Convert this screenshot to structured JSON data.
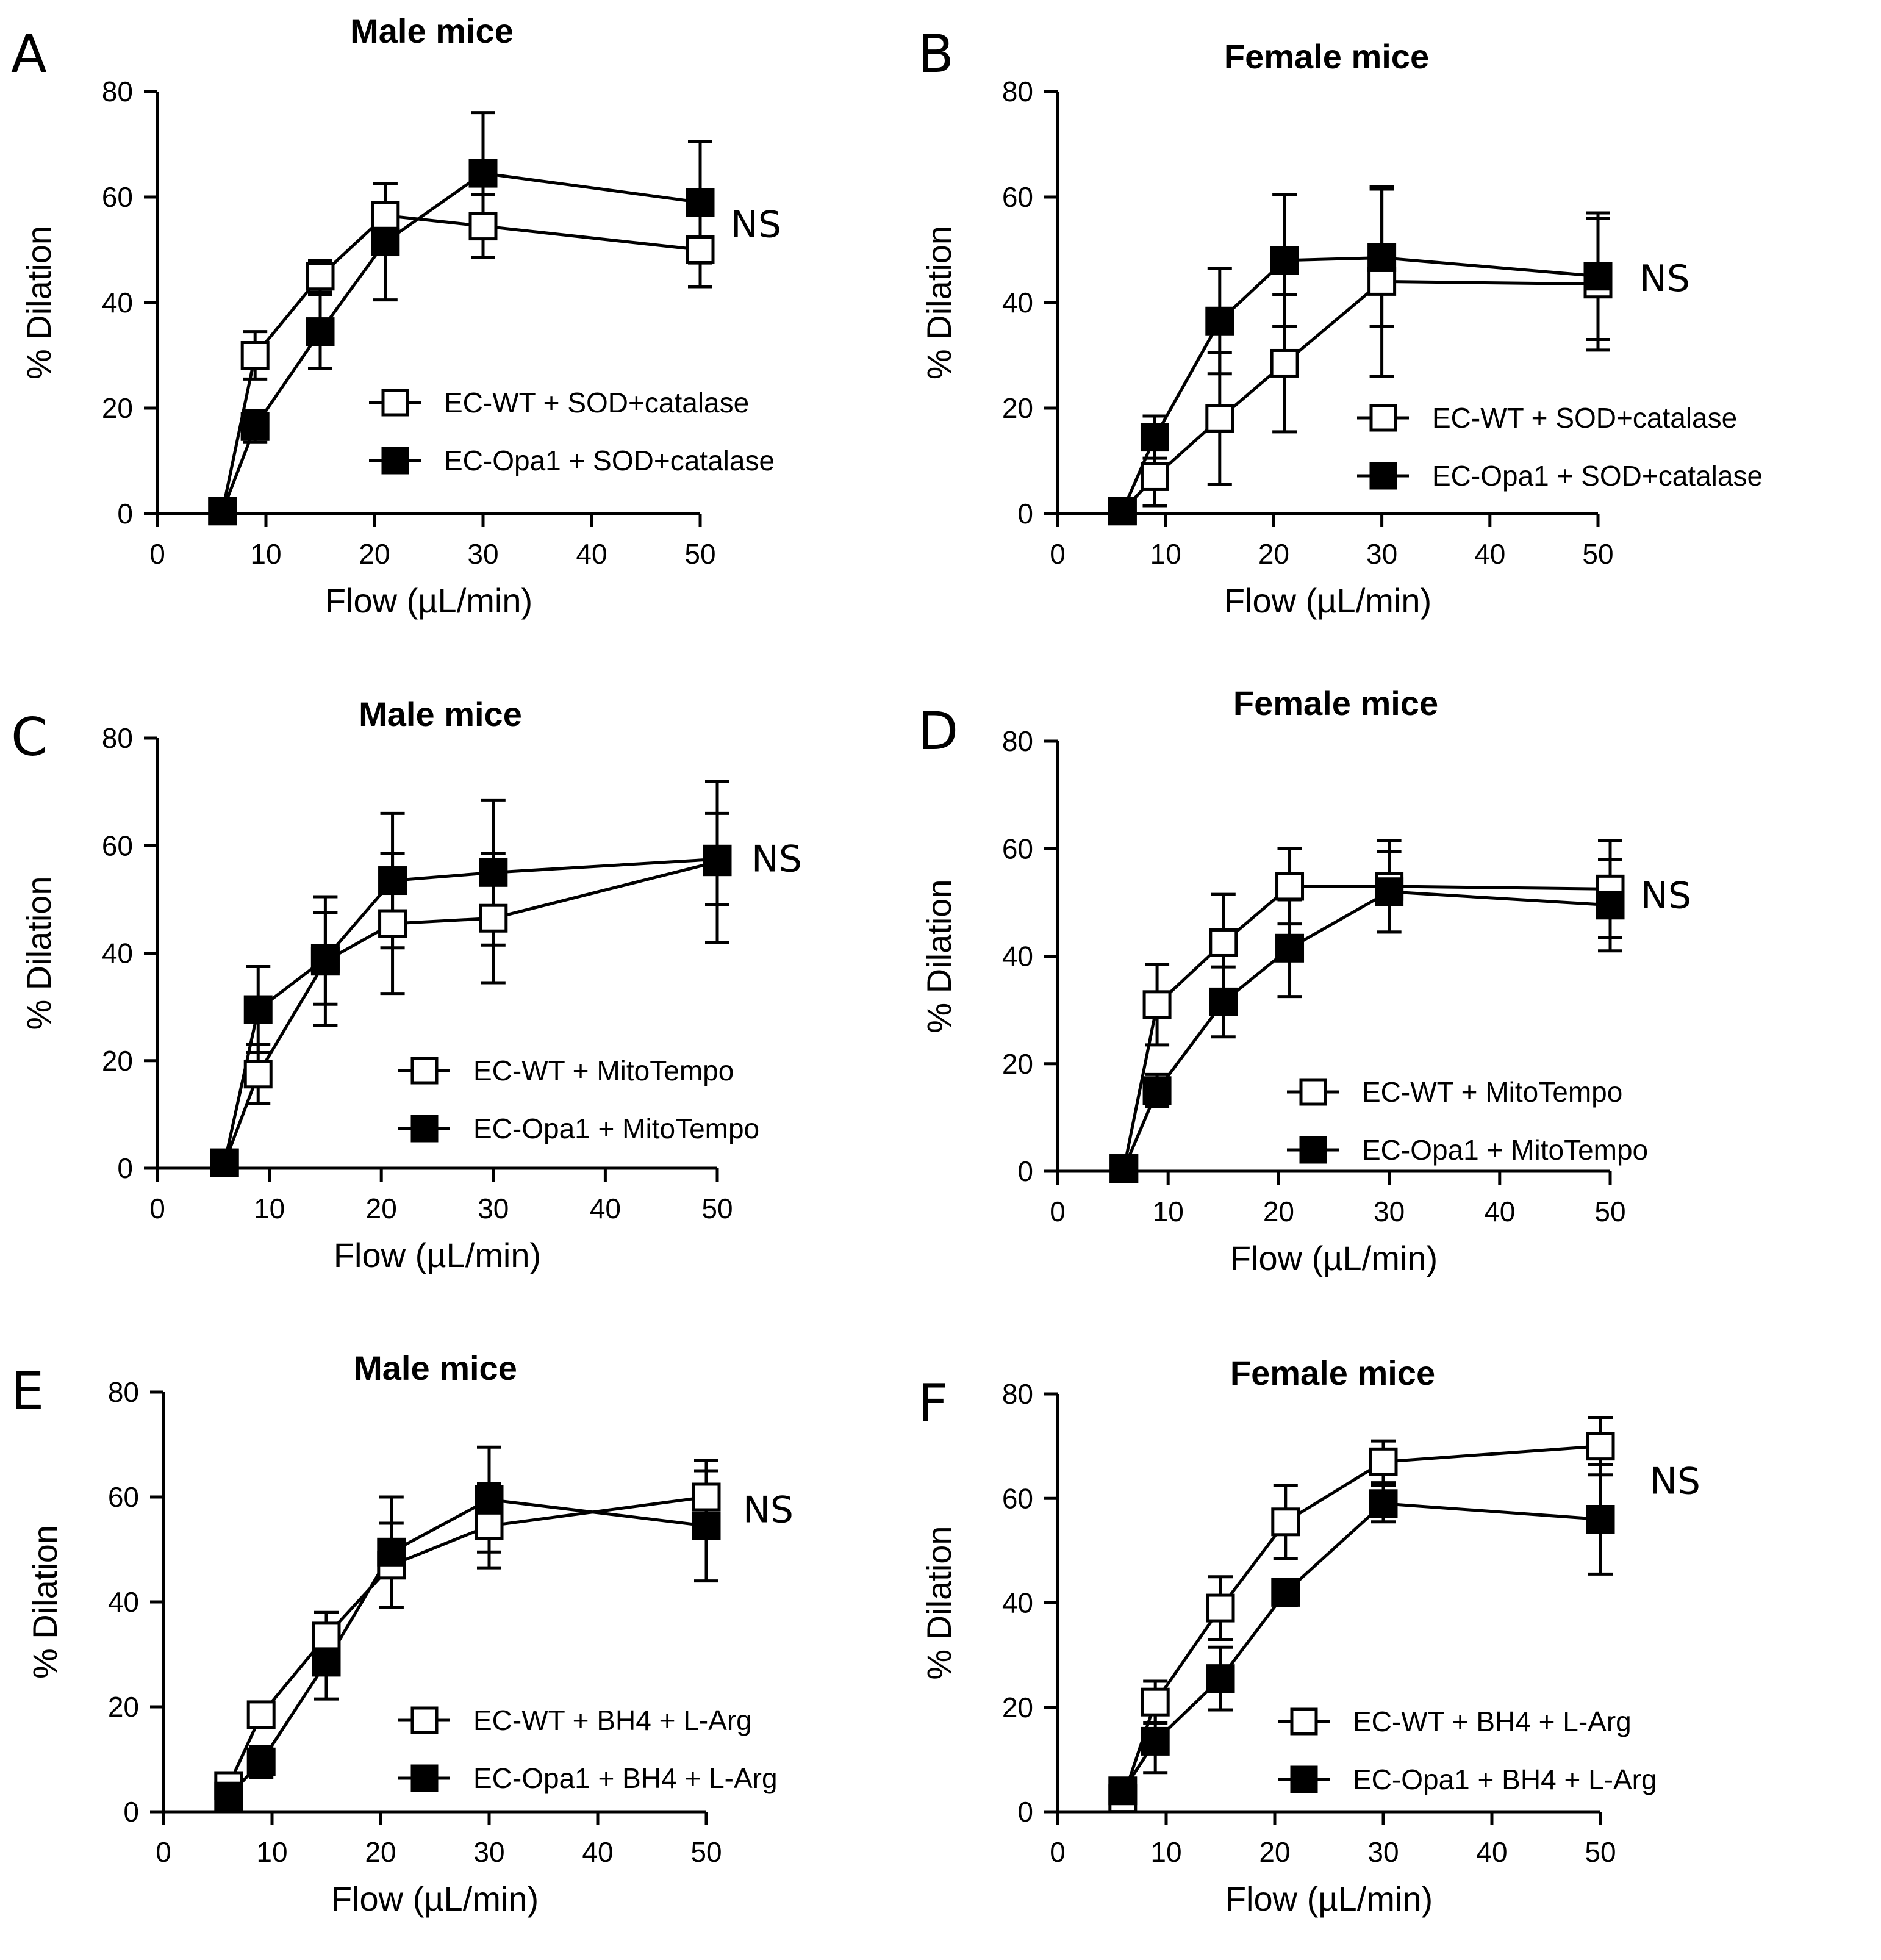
{
  "chart_data": [
    {
      "panel": "A",
      "title": "Male mice",
      "type": "line",
      "xlabel": "Flow (µL/min)",
      "ylabel": "% Dilation",
      "xlim": [
        0,
        50
      ],
      "ylim": [
        0,
        80
      ],
      "xticks": [
        0,
        10,
        20,
        30,
        40,
        50
      ],
      "yticks": [
        0,
        20,
        40,
        60,
        80
      ],
      "annotation": "NS",
      "x": [
        6,
        9,
        15,
        21,
        30,
        50
      ],
      "series": [
        {
          "name": "EC-WT + SOD+catalase",
          "marker": "open-square",
          "values": [
            0.5,
            30,
            45,
            56.5,
            54.5,
            50
          ],
          "err": [
            0,
            4.5,
            3,
            6,
            6,
            7
          ]
        },
        {
          "name": "EC-Opa1 + SOD+catalase",
          "marker": "filled-square",
          "values": [
            0.5,
            16.5,
            34.5,
            51.5,
            64.5,
            59
          ],
          "err": [
            0,
            3,
            7,
            11,
            11.5,
            11.5
          ]
        }
      ]
    },
    {
      "panel": "B",
      "title": "Female mice",
      "type": "line",
      "xlabel": "Flow (µL/min)",
      "ylabel": "% Dilation",
      "xlim": [
        0,
        50
      ],
      "ylim": [
        0,
        80
      ],
      "xticks": [
        0,
        10,
        20,
        30,
        40,
        50
      ],
      "yticks": [
        0,
        20,
        40,
        60,
        80
      ],
      "annotation": "NS",
      "x": [
        6,
        9,
        15,
        21,
        30,
        50
      ],
      "series": [
        {
          "name": "EC-WT + SOD+catalase",
          "marker": "open-square",
          "values": [
            0.5,
            7,
            18,
            28.5,
            44,
            43.5
          ],
          "err": [
            0,
            5.5,
            12.5,
            13,
            18,
            12.5
          ]
        },
        {
          "name": "EC-Opa1 + SOD+catalase",
          "marker": "filled-square",
          "values": [
            0.5,
            14.5,
            36.5,
            48,
            48.5,
            45
          ],
          "err": [
            0,
            4,
            10,
            12.5,
            13,
            12
          ]
        }
      ]
    },
    {
      "panel": "C",
      "title": "Male mice",
      "type": "line",
      "xlabel": "Flow (µL/min)",
      "ylabel": "% Dilation",
      "xlim": [
        0,
        50
      ],
      "ylim": [
        0,
        80
      ],
      "xticks": [
        0,
        10,
        20,
        30,
        40,
        50
      ],
      "yticks": [
        0,
        20,
        40,
        60,
        80
      ],
      "annotation": "NS",
      "x": [
        6,
        9,
        15,
        21,
        30,
        50
      ],
      "series": [
        {
          "name": "EC-WT + MitoTempo",
          "marker": "open-square",
          "values": [
            1,
            17.5,
            38.5,
            45.5,
            46.5,
            57
          ],
          "err": [
            0,
            5.5,
            12,
            13,
            12,
            15
          ]
        },
        {
          "name": "EC-Opa1 + MitoTempo",
          "marker": "filled-square",
          "values": [
            1,
            29.5,
            39,
            53.5,
            55,
            57.5
          ],
          "err": [
            0,
            8,
            8.5,
            12.5,
            13.5,
            8.5
          ]
        }
      ]
    },
    {
      "panel": "D",
      "title": "Female mice",
      "type": "line",
      "xlabel": "Flow (µL/min)",
      "ylabel": "% Dilation",
      "xlim": [
        0,
        50
      ],
      "ylim": [
        0,
        80
      ],
      "xticks": [
        0,
        10,
        20,
        30,
        40,
        50
      ],
      "yticks": [
        0,
        20,
        40,
        60,
        80
      ],
      "annotation": "NS",
      "x": [
        6,
        9,
        15,
        21,
        30,
        50
      ],
      "series": [
        {
          "name": "EC-WT + MitoTempo",
          "marker": "open-square",
          "values": [
            0.5,
            31,
            42.5,
            53,
            53,
            52.5
          ],
          "err": [
            0,
            7.5,
            9,
            7,
            8.5,
            9
          ]
        },
        {
          "name": "EC-Opa1 + MitoTempo",
          "marker": "filled-square",
          "values": [
            0.5,
            15,
            31.5,
            41.5,
            52,
            49.5
          ],
          "err": [
            0,
            3,
            6.5,
            9,
            7.5,
            8.5
          ]
        }
      ]
    },
    {
      "panel": "E",
      "title": "Male mice",
      "type": "line",
      "xlabel": "Flow (µL/min)",
      "ylabel": "% Dilation",
      "xlim": [
        0,
        50
      ],
      "ylim": [
        0,
        80
      ],
      "xticks": [
        0,
        10,
        20,
        30,
        40,
        50
      ],
      "yticks": [
        0,
        20,
        40,
        60,
        80
      ],
      "annotation": "NS",
      "x": [
        6,
        9,
        15,
        21,
        30,
        50
      ],
      "series": [
        {
          "name": "EC-WT + BH4 + L-Arg",
          "marker": "open-square",
          "values": [
            5,
            18.5,
            33.5,
            47,
            54.5,
            60
          ],
          "err": [
            0,
            0,
            4.5,
            8,
            8,
            7
          ]
        },
        {
          "name": "EC-Opa1 + BH4 + L-Arg",
          "marker": "filled-square",
          "values": [
            3,
            9.5,
            28.5,
            49.5,
            59.5,
            54.5
          ],
          "err": [
            0,
            3,
            7,
            10.5,
            10,
            10.5
          ]
        }
      ]
    },
    {
      "panel": "F",
      "title": "Female mice",
      "type": "line",
      "xlabel": "Flow (µL/min)",
      "ylabel": "% Dilation",
      "xlim": [
        0,
        50
      ],
      "ylim": [
        0,
        80
      ],
      "xticks": [
        0,
        10,
        20,
        30,
        40,
        50
      ],
      "yticks": [
        0,
        20,
        40,
        60,
        80
      ],
      "annotation": "NS",
      "x": [
        6,
        9,
        15,
        21,
        30,
        50
      ],
      "series": [
        {
          "name": "EC-WT + BH4 + L-Arg",
          "marker": "open-square",
          "values": [
            2.5,
            21,
            39,
            55.5,
            67,
            70
          ],
          "err": [
            0,
            4,
            6,
            7,
            4,
            5.5
          ]
        },
        {
          "name": "EC-Opa1 + BH4 + L-Arg",
          "marker": "filled-square",
          "values": [
            4,
            13.5,
            25.5,
            42,
            59,
            56
          ],
          "err": [
            2,
            6,
            6,
            2.5,
            3.5,
            10.5
          ]
        }
      ]
    }
  ]
}
